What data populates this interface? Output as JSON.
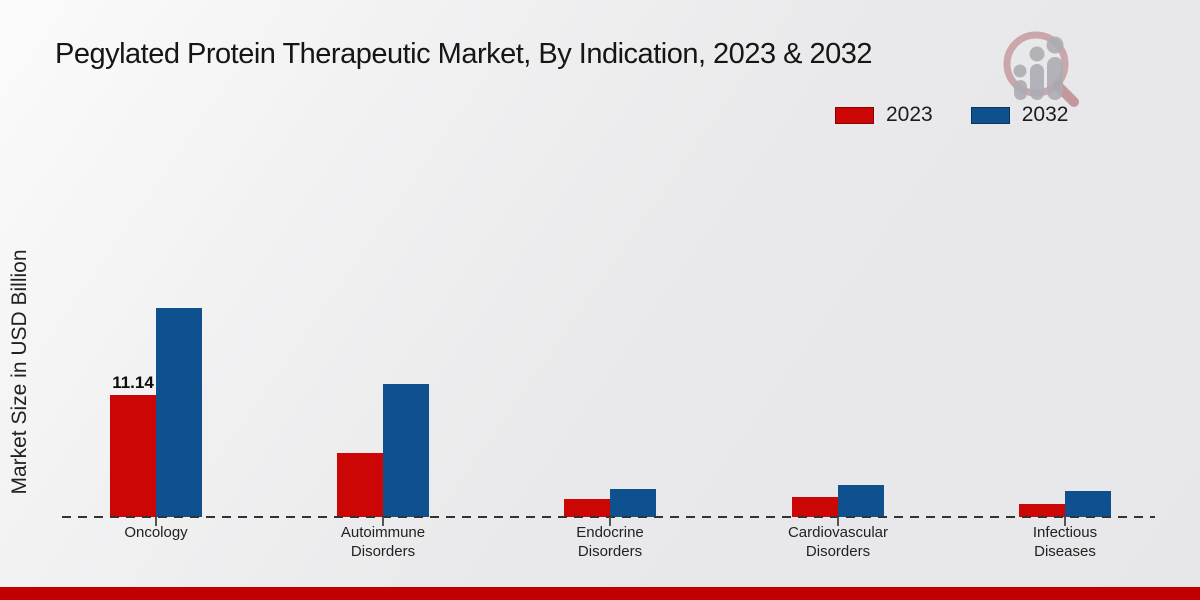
{
  "title": "Pegylated Protein Therapeutic Market, By Indication, 2023 & 2032",
  "ylabel": "Market Size in USD Billion",
  "legend": {
    "items": [
      {
        "label": "2023",
        "color": "#cc0605"
      },
      {
        "label": "2032",
        "color": "#0f518f"
      }
    ]
  },
  "colors": {
    "bar_2023": "#cc0605",
    "bar_2032": "#0f518f",
    "footer_bar": "#c00000",
    "baseline": "#333333",
    "background": "#ebebec"
  },
  "watermark": {
    "name": "magnifier-people-logo"
  },
  "chart_data": {
    "type": "bar",
    "title": "Pegylated Protein Therapeutic Market, By Indication, 2023 & 2032",
    "xlabel": "",
    "ylabel": "Market Size in USD Billion",
    "categories": [
      "Oncology",
      "Autoimmune Disorders",
      "Endocrine Disorders",
      "Cardiovascular Disorders",
      "Infectious Diseases"
    ],
    "series": [
      {
        "name": "2023",
        "color": "#cc0605",
        "values": [
          11.14,
          5.8,
          1.6,
          1.8,
          1.2
        ]
      },
      {
        "name": "2032",
        "color": "#0f518f",
        "values": [
          19.1,
          12.1,
          2.6,
          2.9,
          2.4
        ]
      }
    ],
    "data_labels": [
      {
        "category": "Oncology",
        "series": "2023",
        "text": "11.14"
      }
    ],
    "legend_position": "top-right",
    "grid": false,
    "baseline_style": "dashed",
    "unit": "USD Billion"
  },
  "footer": {
    "accent_color": "#c00000"
  }
}
